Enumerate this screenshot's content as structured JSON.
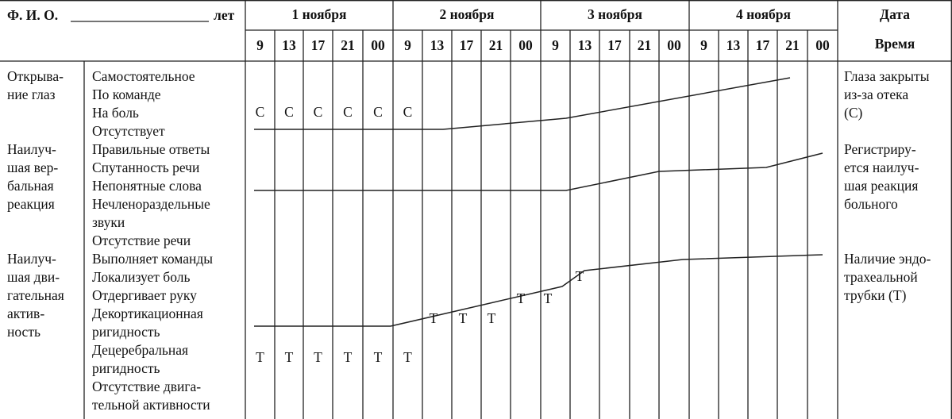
{
  "header": {
    "patient_label": "Ф. И. О.",
    "age_label": "лет",
    "dates": [
      "1 ноября",
      "2 ноября",
      "3 ноября",
      "4 ноября"
    ],
    "date_col_label": "Дата",
    "time_col_label": "Время",
    "times": [
      "9",
      "13",
      "17",
      "21",
      "00",
      "9",
      "13",
      "17",
      "21",
      "00",
      "9",
      "13",
      "17",
      "21",
      "00",
      "9",
      "13",
      "17",
      "21",
      "00"
    ]
  },
  "sections": [
    {
      "category": "Открыва-\nние глаз",
      "responses": [
        "Самостоятельное",
        "По команде",
        "На боль",
        "Отсутствует"
      ],
      "note": "Глаза закрыты\nиз-за отека\n(С)"
    },
    {
      "category": "Наилуч-\nшая вер-\nбальная\nреакция",
      "responses": [
        "Правильные ответы",
        "Спутанность речи",
        "Непонятные слова",
        "Нечленораздельные",
        "звуки",
        "Отсутствие речи"
      ],
      "note": "Регистриру-\nется наилуч-\nшая реакция\nбольного"
    },
    {
      "category": "Наилуч-\nшая дви-\nгательная\nактив-\nность",
      "responses": [
        "Выполняет команды",
        "Локализует боль",
        "Отдергивает руку",
        "Декортикационная",
        "ригидность",
        "Децеребральная",
        "ригидность",
        "Отсутствие двига-",
        "тельной активности"
      ],
      "note": "Наличие эндо-\nтрахеальной\nтрубки (Т)"
    }
  ],
  "marks": {
    "eye_symbol": "С",
    "tube_symbol": "Т",
    "eye_marks": [
      "С",
      "С",
      "С",
      "С",
      "С",
      "С"
    ],
    "motor_bottom_marks": [
      "Т",
      "Т",
      "Т",
      "Т",
      "Т",
      "Т"
    ],
    "motor_mid_marks": [
      "Т",
      "Т",
      "Т",
      "Т",
      "Т",
      "Т"
    ]
  }
}
